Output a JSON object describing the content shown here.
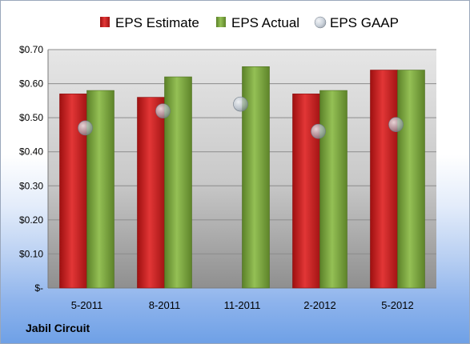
{
  "company": "Jabil Circuit",
  "chart_data": {
    "type": "bar",
    "categories": [
      "5-2011",
      "8-2011",
      "11-2011",
      "2-2012",
      "5-2012"
    ],
    "series": [
      {
        "name": "EPS Estimate",
        "kind": "bar",
        "color": "#cc1f1f",
        "values": [
          0.57,
          0.56,
          null,
          0.57,
          0.64
        ]
      },
      {
        "name": "EPS Actual",
        "kind": "bar",
        "color": "#78a23a",
        "values": [
          0.58,
          0.62,
          0.65,
          0.58,
          0.64
        ]
      },
      {
        "name": "EPS GAAP",
        "kind": "marker",
        "color": "#b9c3cf",
        "values": [
          0.47,
          0.52,
          0.54,
          0.46,
          0.48
        ]
      }
    ],
    "y_ticks": [
      {
        "value": 0.0,
        "label": "$-"
      },
      {
        "value": 0.1,
        "label": "$0.10"
      },
      {
        "value": 0.2,
        "label": "$0.20"
      },
      {
        "value": 0.3,
        "label": "$0.30"
      },
      {
        "value": 0.4,
        "label": "$0.40"
      },
      {
        "value": 0.5,
        "label": "$0.50"
      },
      {
        "value": 0.6,
        "label": "$0.60"
      },
      {
        "value": 0.7,
        "label": "$0.70"
      }
    ],
    "ylim": [
      0,
      0.7
    ],
    "grid": true,
    "legend_position": "top"
  }
}
